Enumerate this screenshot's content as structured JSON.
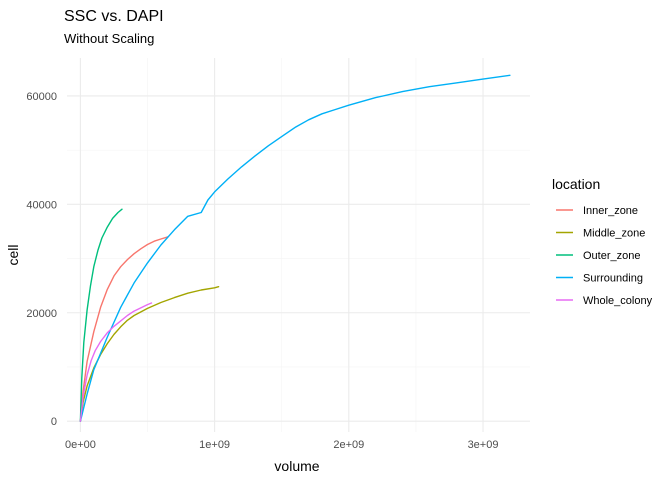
{
  "chart_data": {
    "type": "line",
    "title": "SSC vs. DAPI",
    "subtitle": "Without Scaling",
    "xlabel": "volume",
    "ylabel": "cell",
    "xlim": [
      -100000000,
      3350000000
    ],
    "ylim": [
      -2000,
      67000
    ],
    "x_ticks": [
      {
        "value": 0,
        "label": "0e+00"
      },
      {
        "value": 1000000000,
        "label": "1e+09"
      },
      {
        "value": 2000000000,
        "label": "2e+09"
      },
      {
        "value": 3000000000,
        "label": "3e+09"
      }
    ],
    "y_ticks": [
      {
        "value": 0,
        "label": "0"
      },
      {
        "value": 20000,
        "label": "20000"
      },
      {
        "value": 40000,
        "label": "40000"
      },
      {
        "value": 60000,
        "label": "60000"
      }
    ],
    "grid": true,
    "legend": {
      "title": "location",
      "position": "right"
    },
    "series": [
      {
        "name": "Inner_zone",
        "color": "#F8766D",
        "x": [
          0,
          20000000,
          50000000,
          100000000,
          150000000,
          200000000,
          250000000,
          300000000,
          350000000,
          400000000,
          450000000,
          500000000,
          550000000,
          600000000,
          650000000
        ],
        "y": [
          0,
          5500,
          11000,
          16500,
          21000,
          24300,
          26800,
          28500,
          29800,
          30900,
          31800,
          32600,
          33200,
          33600,
          34000
        ]
      },
      {
        "name": "Middle_zone",
        "color": "#A3A500",
        "x": [
          0,
          20000000,
          50000000,
          100000000,
          150000000,
          200000000,
          250000000,
          300000000,
          350000000,
          400000000,
          500000000,
          600000000,
          700000000,
          800000000,
          900000000,
          1000000000,
          1030000000
        ],
        "y": [
          0,
          3500,
          6500,
          9800,
          12300,
          14300,
          16000,
          17400,
          18600,
          19500,
          20800,
          21900,
          22800,
          23600,
          24200,
          24600,
          24800
        ]
      },
      {
        "name": "Outer_zone",
        "color": "#00BF7D",
        "x": [
          0,
          10000000,
          25000000,
          50000000,
          75000000,
          100000000,
          130000000,
          160000000,
          200000000,
          240000000,
          280000000,
          310000000
        ],
        "y": [
          0,
          8000,
          14500,
          20500,
          25000,
          28500,
          31500,
          33800,
          35800,
          37400,
          38500,
          39100
        ]
      },
      {
        "name": "Surrounding",
        "color": "#00B0F6",
        "x": [
          0,
          50000000,
          100000000,
          200000000,
          300000000,
          400000000,
          500000000,
          600000000,
          700000000,
          800000000,
          900000000,
          950000000,
          1000000000,
          1100000000,
          1200000000,
          1300000000,
          1400000000,
          1500000000,
          1600000000,
          1700000000,
          1800000000,
          1900000000,
          2000000000,
          2200000000,
          2400000000,
          2600000000,
          2800000000,
          3000000000,
          3200000000
        ],
        "y": [
          0,
          5000,
          9500,
          15500,
          21000,
          25500,
          29200,
          32500,
          35300,
          37800,
          38500,
          40800,
          42300,
          44700,
          46900,
          48900,
          50800,
          52500,
          54200,
          55600,
          56700,
          57500,
          58300,
          59700,
          60800,
          61700,
          62400,
          63100,
          63800
        ]
      },
      {
        "name": "Whole_colony",
        "color": "#E76BF3",
        "x": [
          0,
          20000000,
          50000000,
          80000000,
          110000000,
          150000000,
          200000000,
          250000000,
          300000000,
          350000000,
          400000000,
          450000000,
          500000000,
          530000000
        ],
        "y": [
          0,
          4500,
          8500,
          11200,
          13000,
          14700,
          16300,
          17500,
          18500,
          19500,
          20300,
          20900,
          21500,
          21800
        ]
      }
    ]
  }
}
